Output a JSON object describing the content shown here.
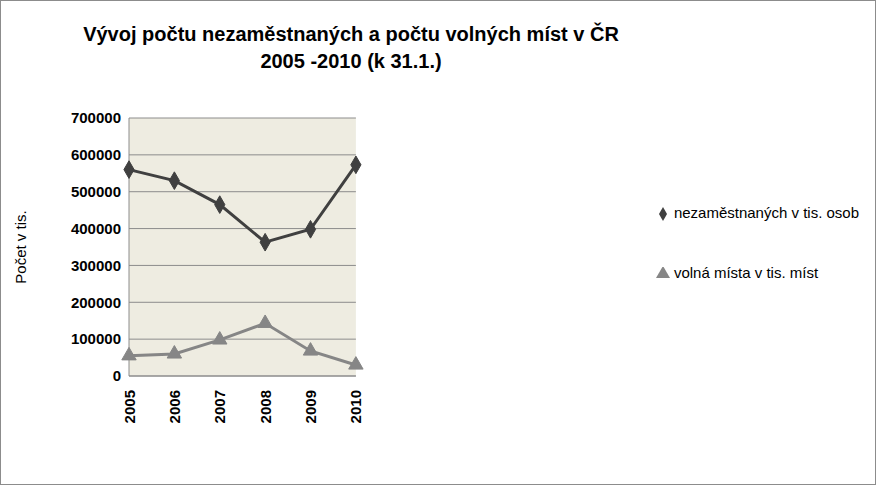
{
  "chart_data": {
    "type": "line",
    "title": "Vývoj počtu nezaměstnaných a počtu volných míst v ČR\n2005 -2010 (k 31.1.)",
    "y_label": "Počet v tis.",
    "categories": [
      "2005",
      "2006",
      "2007",
      "2008",
      "2009",
      "2010"
    ],
    "series": [
      {
        "name": "nezaměstnaných v tis. osob",
        "color": "#404040",
        "marker": "diamond",
        "values": [
          560000,
          530000,
          465000,
          363000,
          398000,
          573000
        ]
      },
      {
        "name": "volná místa v tis. míst",
        "color": "#868686",
        "marker": "triangle",
        "values": [
          55000,
          60000,
          98000,
          143000,
          68000,
          30000
        ]
      }
    ],
    "ylim": [
      0,
      700000
    ],
    "yticks": [
      0,
      100000,
      200000,
      300000,
      400000,
      500000,
      600000,
      700000
    ],
    "grid": true,
    "legend": "right"
  }
}
